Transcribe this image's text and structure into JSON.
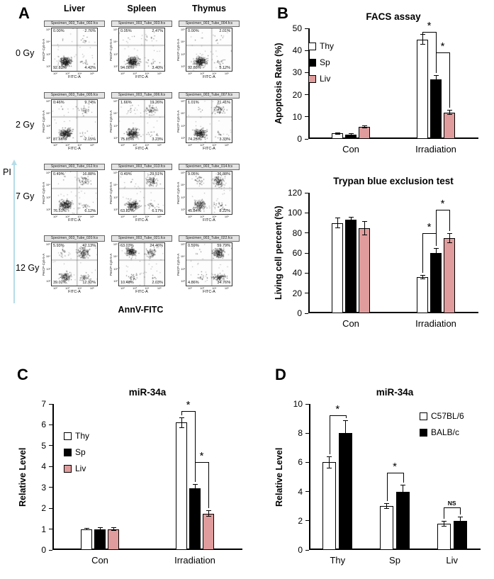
{
  "panel_labels": [
    "A",
    "B",
    "C",
    "D"
  ],
  "colors": {
    "thy": "#ffffff",
    "sp": "#000000",
    "liv": "#e09c9c",
    "axis_arrow": "#b5dde9"
  },
  "chart_data": [
    {
      "id": "facs-grid",
      "type": "scatter",
      "col_headers": [
        "Liver",
        "Spleen",
        "Thymus"
      ],
      "row_labels": [
        "0 Gy",
        "2 Gy",
        "7 Gy",
        "12 Gy"
      ],
      "outer_ylabel": "PI",
      "outer_xlabel": "AnnV-FITC",
      "plot_ylabel": "PerCP-Cy5-5-A",
      "plot_xlabel": "FITC-A",
      "plot_yticks": [
        "10⁵",
        "10⁴",
        "10³",
        "10²"
      ],
      "plot_xticks": [
        "10²",
        "10³",
        "10⁴",
        "10⁵"
      ],
      "plots": [
        {
          "file": "Specimen_003_Tube_002.fcs",
          "ul": "0.00%",
          "ur": "2.76%",
          "ll": "92.82%",
          "lr": "4.42%"
        },
        {
          "file": "Specimen_003_Tube_003.fcs",
          "ul": "0.05%",
          "ur": "2.47%",
          "ll": "94.08%",
          "lr": "3.40%"
        },
        {
          "file": "Specimen_003_Tube_004.fcs",
          "ul": "0.00%",
          "ur": "2.01%",
          "ll": "92.88%",
          "lr": "5.12%"
        },
        {
          "file": "Specimen_003_Tube_005.fcs",
          "ul": "0.46%",
          "ur": "9.74%",
          "ll": "87.66%",
          "lr": "2.15%"
        },
        {
          "file": "Specimen_003_Tube_006.fcs",
          "ul": "1.66%",
          "ur": "19.26%",
          "ll": "75.85%",
          "lr": "3.23%"
        },
        {
          "file": "Specimen_003_Tube_007.fcs",
          "ul": "1.01%",
          "ur": "21.41%",
          "ll": "74.25%",
          "lr": "3.33%"
        },
        {
          "file": "Specimen_003_Tube_012.fcs",
          "ul": "0.49%",
          "ur": "16.88%",
          "ll": "76.51%",
          "lr": "6.12%"
        },
        {
          "file": "Specimen_003_Tube_013.fcs",
          "ul": "0.49%",
          "ur": "29.51%",
          "ll": "63.82%",
          "lr": "6.17%"
        },
        {
          "file": "Specimen_003_Tube_014.fcs",
          "ul": "9.05%",
          "ur": "36.88%",
          "ll": "45.84%",
          "lr": "8.22%"
        },
        {
          "file": "Specimen_003_Tube_020.fcs",
          "ul": "5.93%",
          "ur": "42.13%",
          "ll": "39.02%",
          "lr": "12.92%"
        },
        {
          "file": "Specimen_003_Tube_021.fcs",
          "ul": "63.03%",
          "ur": "24.46%",
          "ll": "10.48%",
          "lr": "2.03%"
        },
        {
          "file": "Specimen_003_Tube_022.fcs",
          "ul": "0.59%",
          "ur": "59.79%",
          "ll": "4.86%",
          "lr": "34.76%"
        }
      ]
    },
    {
      "id": "facs-assay",
      "type": "bar",
      "title": "FACS assay",
      "ylabel": "Apoptosis Rate (%)",
      "ylim": [
        0,
        50
      ],
      "ytick_step": 10,
      "categories": [
        "Con",
        "Irradiation"
      ],
      "legend_pos": "left",
      "series": [
        {
          "name": "Thy",
          "color": "#ffffff",
          "values": [
            2.5,
            45
          ],
          "errors": [
            0.5,
            2.5
          ]
        },
        {
          "name": "Sp",
          "color": "#000000",
          "values": [
            2.0,
            27
          ],
          "errors": [
            0.5,
            2.0
          ]
        },
        {
          "name": "Liv",
          "color": "#e09c9c",
          "values": [
            5.5,
            12
          ],
          "errors": [
            0.7,
            1.2
          ]
        }
      ],
      "sig": [
        {
          "cat": 1,
          "from": 0,
          "to": 1,
          "label": "*",
          "y": 48.5
        },
        {
          "cat": 1,
          "from": 1,
          "to": 2,
          "label": "*",
          "y": 39
        }
      ]
    },
    {
      "id": "trypan",
      "type": "bar",
      "title": "Trypan blue exclusion test",
      "ylabel": "Living cell percent (%)",
      "ylim": [
        0,
        120
      ],
      "ytick_step": 20,
      "categories": [
        "Con",
        "Irradiation"
      ],
      "series": [
        {
          "name": "Thy",
          "color": "#ffffff",
          "values": [
            90,
            36
          ],
          "errors": [
            5,
            2
          ]
        },
        {
          "name": "Sp",
          "color": "#000000",
          "values": [
            93,
            60
          ],
          "errors": [
            3,
            5
          ]
        },
        {
          "name": "Liv",
          "color": "#e09c9c",
          "values": [
            85,
            75
          ],
          "errors": [
            7,
            5
          ]
        }
      ],
      "sig": [
        {
          "cat": 1,
          "from": 0,
          "to": 1,
          "label": "*",
          "y": 80
        },
        {
          "cat": 1,
          "from": 1,
          "to": 2,
          "label": "*",
          "y": 103
        }
      ]
    },
    {
      "id": "mir34a-ci",
      "type": "bar",
      "title": "miR-34a",
      "ylabel": "Relative Level",
      "ylim": [
        0,
        7
      ],
      "ytick_step": 1,
      "categories": [
        "Con",
        "Irradiation"
      ],
      "legend_pos": "left",
      "series": [
        {
          "name": "Thy",
          "color": "#ffffff",
          "values": [
            1.0,
            6.1
          ],
          "errors": [
            0.06,
            0.25
          ]
        },
        {
          "name": "Sp",
          "color": "#000000",
          "values": [
            1.0,
            2.95
          ],
          "errors": [
            0.08,
            0.2
          ]
        },
        {
          "name": "Liv",
          "color": "#e09c9c",
          "values": [
            1.0,
            1.75
          ],
          "errors": [
            0.08,
            0.15
          ]
        }
      ],
      "sig": [
        {
          "cat": 1,
          "from": 0,
          "to": 1,
          "label": "*",
          "y": 6.65
        },
        {
          "cat": 1,
          "from": 1,
          "to": 2,
          "label": "*",
          "y": 4.2
        }
      ]
    },
    {
      "id": "mir34a-strain",
      "type": "bar",
      "title": "miR-34a",
      "ylabel": "Relative Level",
      "ylim": [
        0,
        10
      ],
      "ytick_step": 2,
      "categories": [
        "Thy",
        "Sp",
        "Liv"
      ],
      "legend_pos": "right",
      "series": [
        {
          "name": "C57BL/6",
          "color": "#ffffff",
          "values": [
            6.0,
            3.0,
            1.8
          ],
          "errors": [
            0.4,
            0.2,
            0.2
          ]
        },
        {
          "name": "BALB/c",
          "color": "#000000",
          "values": [
            8.0,
            4.0,
            2.0
          ],
          "errors": [
            0.9,
            0.45,
            0.3
          ]
        }
      ],
      "sig": [
        {
          "cat": 0,
          "from": 0,
          "to": 1,
          "label": "*",
          "y": 9.2
        },
        {
          "cat": 1,
          "from": 0,
          "to": 1,
          "label": "*",
          "y": 5.3
        },
        {
          "cat": 2,
          "from": 0,
          "to": 1,
          "label": "NS",
          "y": 2.9
        }
      ]
    }
  ]
}
